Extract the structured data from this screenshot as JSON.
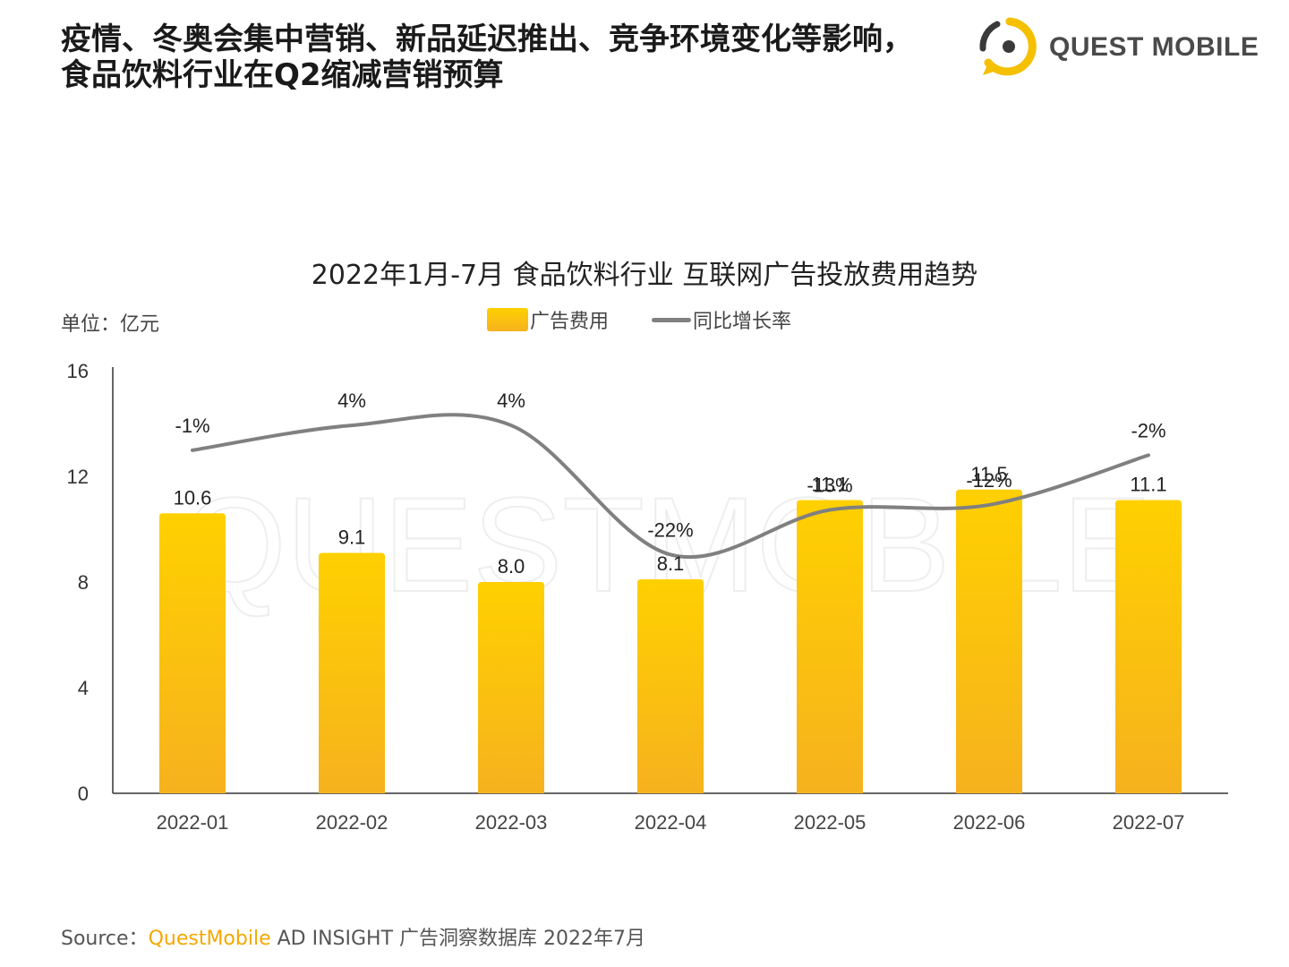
{
  "headline": {
    "line1": "疫情、冬奥会集中营销、新品延迟推出、竞争环境变化等影响，",
    "line2": "食品饮料行业在Q2缩减营销预算"
  },
  "logo": {
    "text": "QUEST MOBILE",
    "icon": "quest-mobile-logo-icon"
  },
  "watermark": "QUESTMOBILE",
  "unit_label": "单位：亿元",
  "source": {
    "prefix": "Source：",
    "brand": "QuestMobile",
    "rest": " AD INSIGHT 广告洞察数据库 2022年7月"
  },
  "colors": {
    "bar_top": "#ffd000",
    "bar_bottom": "#f6b21e",
    "line": "#808080",
    "brand": "#f5a800"
  },
  "chart_data": {
    "type": "bar",
    "title": "2022年1月-7月 食品饮料行业 互联网广告投放费用趋势",
    "categories": [
      "2022-01",
      "2022-02",
      "2022-03",
      "2022-04",
      "2022-05",
      "2022-06",
      "2022-07"
    ],
    "series": [
      {
        "name": "广告费用",
        "type": "bar",
        "axis": "left",
        "values": [
          10.6,
          9.1,
          8.0,
          8.1,
          11.1,
          11.5,
          11.1
        ],
        "labels": [
          "10.6",
          "9.1",
          "8.0",
          "8.1",
          "11.1",
          "11.5",
          "11.1"
        ]
      },
      {
        "name": "同比增长率",
        "type": "line",
        "axis": "secondary-hidden",
        "values": [
          -1,
          4,
          4,
          -22,
          -13,
          -12,
          -2
        ],
        "labels": [
          "-1%",
          "4%",
          "4%",
          "-22%",
          "-13%",
          "-12%",
          "-2%"
        ]
      }
    ],
    "ylim": [
      0,
      16
    ],
    "yticks": [
      0,
      4,
      8,
      12,
      16
    ],
    "y2lim": [
      -70,
      15
    ],
    "legend": "top-center",
    "grid": false
  }
}
